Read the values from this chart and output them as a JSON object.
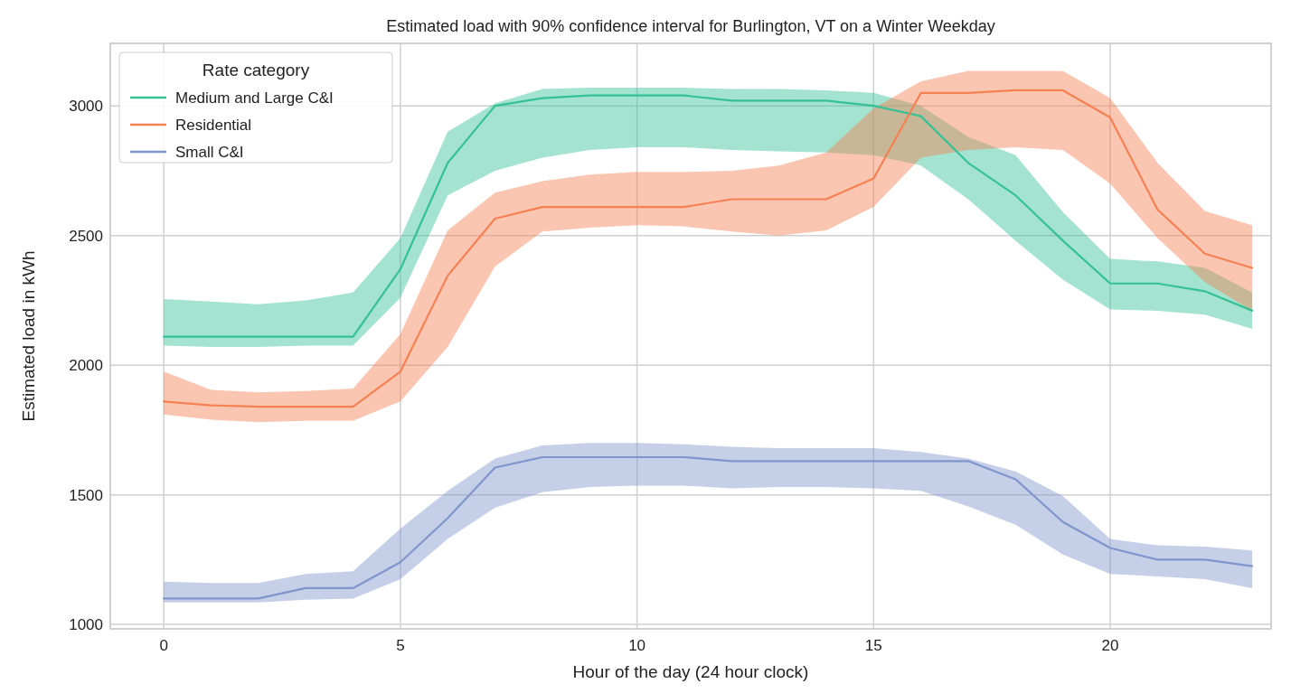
{
  "chart_data": {
    "type": "line",
    "title": "Estimated load with 90% confidence interval for Burlington, VT on a Winter Weekday",
    "xlabel": "Hour of the day (24 hour clock)",
    "ylabel": "Estimated load in kWh",
    "legend_title": "Rate category",
    "legend": "top left",
    "grid": true,
    "marker": "none",
    "line_style": "solid",
    "x": [
      0,
      1,
      2,
      3,
      4,
      5,
      6,
      7,
      8,
      9,
      10,
      11,
      12,
      13,
      14,
      15,
      16,
      17,
      18,
      19,
      20,
      21,
      22,
      23
    ],
    "xlim": [
      -1.13,
      23.4
    ],
    "xticks": [
      0,
      5,
      10,
      15,
      20
    ],
    "ylim": [
      983,
      3241
    ],
    "yticks": [
      1000,
      1500,
      2000,
      2500,
      3000
    ],
    "series": [
      {
        "name": "Medium and Large C&I",
        "color": "#35c095",
        "values": [
          2110,
          2110,
          2110,
          2110,
          2110,
          2370,
          2780,
          3000,
          3030,
          3040,
          3040,
          3040,
          3020,
          3020,
          3020,
          3000,
          2960,
          2780,
          2655,
          2480,
          2315,
          2315,
          2285,
          2210
        ],
        "lower": [
          2075,
          2070,
          2070,
          2075,
          2075,
          2260,
          2655,
          2750,
          2800,
          2830,
          2840,
          2840,
          2830,
          2825,
          2820,
          2810,
          2770,
          2640,
          2480,
          2330,
          2215,
          2210,
          2195,
          2140
        ],
        "upper": [
          2255,
          2245,
          2235,
          2250,
          2280,
          2490,
          2900,
          3010,
          3065,
          3070,
          3070,
          3070,
          3065,
          3065,
          3060,
          3050,
          3000,
          2880,
          2810,
          2590,
          2410,
          2400,
          2375,
          2280
        ]
      },
      {
        "name": "Residential",
        "color": "#f58052",
        "values": [
          1860,
          1845,
          1840,
          1840,
          1840,
          1975,
          2345,
          2565,
          2610,
          2610,
          2610,
          2610,
          2640,
          2640,
          2640,
          2720,
          3050,
          3050,
          3060,
          3060,
          2955,
          2600,
          2430,
          2375
        ],
        "lower": [
          1810,
          1790,
          1780,
          1785,
          1785,
          1860,
          2070,
          2380,
          2515,
          2530,
          2540,
          2535,
          2515,
          2500,
          2520,
          2610,
          2800,
          2830,
          2840,
          2830,
          2700,
          2490,
          2320,
          2210
        ],
        "upper": [
          1975,
          1905,
          1895,
          1900,
          1910,
          2120,
          2520,
          2665,
          2710,
          2735,
          2745,
          2745,
          2750,
          2770,
          2820,
          2990,
          3095,
          3135,
          3135,
          3135,
          3030,
          2780,
          2595,
          2540
        ]
      },
      {
        "name": "Small C&I",
        "color": "#7f95cc",
        "values": [
          1100,
          1100,
          1100,
          1140,
          1140,
          1240,
          1410,
          1605,
          1645,
          1645,
          1645,
          1645,
          1630,
          1630,
          1630,
          1630,
          1630,
          1630,
          1560,
          1395,
          1295,
          1250,
          1250,
          1225
        ],
        "lower": [
          1085,
          1085,
          1085,
          1095,
          1100,
          1175,
          1330,
          1450,
          1510,
          1530,
          1535,
          1535,
          1525,
          1530,
          1530,
          1525,
          1515,
          1455,
          1385,
          1270,
          1195,
          1185,
          1175,
          1140
        ],
        "upper": [
          1165,
          1160,
          1160,
          1195,
          1205,
          1370,
          1515,
          1640,
          1690,
          1700,
          1700,
          1695,
          1685,
          1680,
          1680,
          1680,
          1665,
          1640,
          1590,
          1495,
          1330,
          1305,
          1300,
          1285
        ]
      }
    ]
  }
}
